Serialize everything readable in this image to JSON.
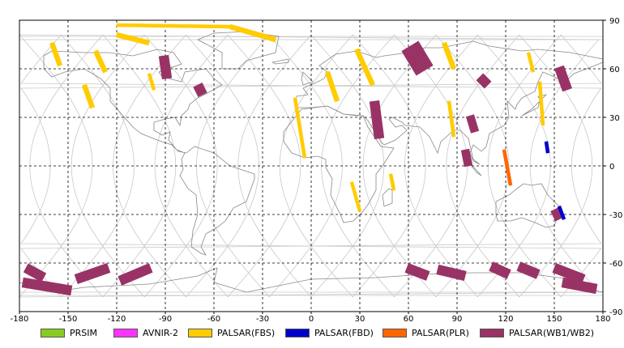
{
  "map": {
    "axes": {
      "x_ticks": [
        -180,
        -150,
        -120,
        -90,
        -60,
        -30,
        0,
        30,
        60,
        90,
        120,
        150,
        180
      ],
      "y_ticks": [
        90,
        60,
        30,
        0,
        -30,
        -60,
        -90
      ],
      "x_range": [
        -180,
        180
      ],
      "y_range": [
        -90,
        90
      ],
      "grid": "dashed"
    },
    "colors": {
      "PRSIM": "#88cc22",
      "AVNIR-2": "#ff33ff",
      "PALSAR(FBS)": "#ffcc00",
      "PALSAR(FBD)": "#0000cc",
      "PALSAR(PLR)": "#ff6600",
      "PALSAR(WB1/WB2)": "#993366",
      "coastline": "#888888",
      "orbit_tracks": "#c8c8c8"
    },
    "legend": [
      {
        "key": "PRSIM",
        "label": "PRSIM"
      },
      {
        "key": "AVNIR-2",
        "label": "AVNIR-2"
      },
      {
        "key": "PALSAR(FBS)",
        "label": "PALSAR(FBS)"
      },
      {
        "key": "PALSAR(FBD)",
        "label": "PALSAR(FBD)"
      },
      {
        "key": "PALSAR(PLR)",
        "label": "PALSAR(PLR)"
      },
      {
        "key": "PALSAR(WB1/WB2)",
        "label": "PALSAR(WB1/WB2)"
      }
    ],
    "observations": [
      {
        "mode": "PALSAR(WB1/WB2)",
        "lat": [
          68,
          54
        ],
        "lon": [
          -91,
          -89
        ],
        "width": 3
      },
      {
        "mode": "PALSAR(WB1/WB2)",
        "lat": [
          50,
          44
        ],
        "lon": [
          -70,
          -67
        ],
        "width": 3
      },
      {
        "mode": "PALSAR(WB1/WB2)",
        "lat": [
          74,
          59
        ],
        "lon": [
          61,
          70
        ],
        "width": 6
      },
      {
        "mode": "PALSAR(WB1/WB2)",
        "lat": [
          40,
          17
        ],
        "lon": [
          39,
          42
        ],
        "width": 3
      },
      {
        "mode": "PALSAR(WB1/WB2)",
        "lat": [
          55,
          50
        ],
        "lon": [
          104,
          109
        ],
        "width": 3
      },
      {
        "mode": "PALSAR(WB1/WB2)",
        "lat": [
          61,
          47
        ],
        "lon": [
          153,
          158
        ],
        "width": 3
      },
      {
        "mode": "PALSAR(WB1/WB2)",
        "lat": [
          31,
          21
        ],
        "lon": [
          98,
          101
        ],
        "width": 2.5
      },
      {
        "mode": "PALSAR(WB1/WB2)",
        "lat": [
          10,
          0
        ],
        "lon": [
          95,
          97
        ],
        "width": 2.5
      },
      {
        "mode": "PALSAR(WB1/WB2)",
        "lat": [
          -27,
          -33
        ],
        "lon": [
          150,
          153
        ],
        "width": 2.5
      },
      {
        "mode": "PALSAR(WB1/WB2)",
        "lat": [
          -63,
          -69
        ],
        "lon": [
          -176,
          -165
        ],
        "width": 3
      },
      {
        "mode": "PALSAR(WB1/WB2)",
        "lat": [
          -72,
          -77
        ],
        "lon": [
          -178,
          -148
        ],
        "width": 3
      },
      {
        "mode": "PALSAR(WB1/WB2)",
        "lat": [
          -63,
          -70
        ],
        "lon": [
          -125,
          -145
        ],
        "width": 3
      },
      {
        "mode": "PALSAR(WB1/WB2)",
        "lat": [
          -63,
          -71
        ],
        "lon": [
          -99,
          -118
        ],
        "width": 3
      },
      {
        "mode": "PALSAR(WB1/WB2)",
        "lat": [
          -63,
          -68
        ],
        "lon": [
          59,
          72
        ],
        "width": 3
      },
      {
        "mode": "PALSAR(WB1/WB2)",
        "lat": [
          -64,
          -68
        ],
        "lon": [
          78,
          95
        ],
        "width": 3
      },
      {
        "mode": "PALSAR(WB1/WB2)",
        "lat": [
          -62,
          -67
        ],
        "lon": [
          111,
          122
        ],
        "width": 3
      },
      {
        "mode": "PALSAR(WB1/WB2)",
        "lat": [
          -62,
          -67
        ],
        "lon": [
          128,
          140
        ],
        "width": 3
      },
      {
        "mode": "PALSAR(WB1/WB2)",
        "lat": [
          -63,
          -70
        ],
        "lon": [
          150,
          168
        ],
        "width": 3
      },
      {
        "mode": "PALSAR(WB1/WB2)",
        "lat": [
          -72,
          -76
        ],
        "lon": [
          155,
          176
        ],
        "width": 3
      },
      {
        "mode": "PALSAR(FBS)",
        "lat": [
          87,
          86
        ],
        "lon": [
          -120,
          -50
        ],
        "width": 1
      },
      {
        "mode": "PALSAR(FBS)",
        "lat": [
          86,
          78
        ],
        "lon": [
          -50,
          -22
        ],
        "width": 1.5
      },
      {
        "mode": "PALSAR(FBS)",
        "lat": [
          81,
          76
        ],
        "lon": [
          -120,
          -100
        ],
        "width": 1.5
      },
      {
        "mode": "PALSAR(FBS)",
        "lat": [
          71,
          58
        ],
        "lon": [
          -133,
          -127
        ],
        "width": 1.5
      },
      {
        "mode": "PALSAR(FBS)",
        "lat": [
          76,
          62
        ],
        "lon": [
          -160,
          -155
        ],
        "width": 1.5
      },
      {
        "mode": "PALSAR(FBS)",
        "lat": [
          50,
          36
        ],
        "lon": [
          -140,
          -135
        ],
        "width": 1.5
      },
      {
        "mode": "PALSAR(FBS)",
        "lat": [
          76,
          60
        ],
        "lon": [
          82,
          88
        ],
        "width": 1.5
      },
      {
        "mode": "PALSAR(FBS)",
        "lat": [
          72,
          50
        ],
        "lon": [
          28,
          38
        ],
        "width": 1.5
      },
      {
        "mode": "PALSAR(FBS)",
        "lat": [
          58,
          40
        ],
        "lon": [
          10,
          16
        ],
        "width": 1.5
      },
      {
        "mode": "PALSAR(FBS)",
        "lat": [
          42,
          5
        ],
        "lon": [
          -10,
          -4
        ],
        "width": 1
      },
      {
        "mode": "PALSAR(FBS)",
        "lat": [
          -10,
          -28
        ],
        "lon": [
          25,
          30
        ],
        "width": 1
      },
      {
        "mode": "PALSAR(FBS)",
        "lat": [
          -5,
          -15
        ],
        "lon": [
          49,
          51
        ],
        "width": 1
      },
      {
        "mode": "PALSAR(FBS)",
        "lat": [
          52,
          25
        ],
        "lon": [
          141,
          143
        ],
        "width": 1
      },
      {
        "mode": "PALSAR(FBS)",
        "lat": [
          40,
          18
        ],
        "lon": [
          85,
          88
        ],
        "width": 1
      },
      {
        "mode": "PALSAR(FBS)",
        "lat": [
          70,
          58
        ],
        "lon": [
          134,
          137
        ],
        "width": 1
      },
      {
        "mode": "PALSAR(FBS)",
        "lat": [
          57,
          47
        ],
        "lon": [
          -100,
          -97
        ],
        "width": 1
      },
      {
        "mode": "PALSAR(FBD)",
        "lat": [
          15,
          8
        ],
        "lon": [
          145,
          146
        ],
        "width": 1
      },
      {
        "mode": "PALSAR(FBD)",
        "lat": [
          -25,
          -33
        ],
        "lon": [
          153,
          156
        ],
        "width": 1
      },
      {
        "mode": "PALSAR(PLR)",
        "lat": [
          10,
          -12
        ],
        "lon": [
          119,
          123
        ],
        "width": 1
      }
    ]
  }
}
